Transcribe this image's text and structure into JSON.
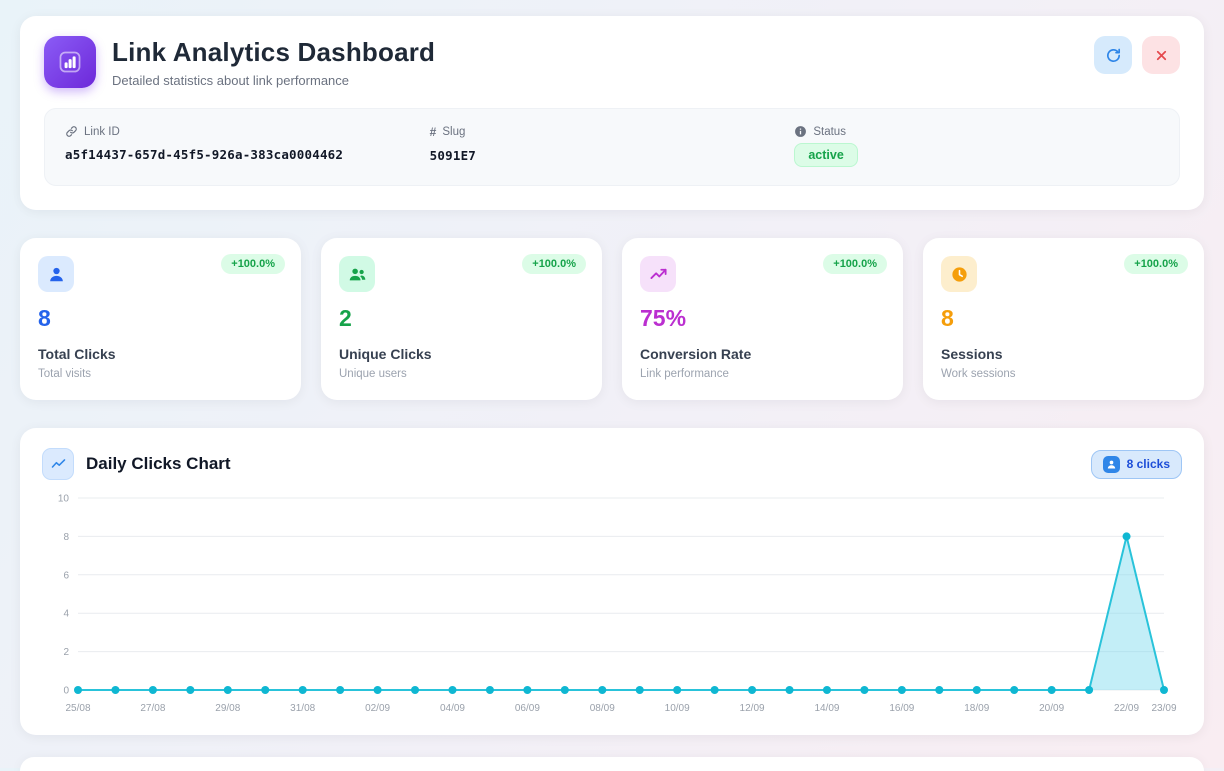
{
  "header": {
    "title": "Link Analytics Dashboard",
    "subtitle": "Detailed statistics about link performance"
  },
  "link_info": {
    "link_id": {
      "label": "Link ID",
      "value": "a5f14437-657d-45f5-926a-383ca0004462"
    },
    "slug": {
      "label": "Slug",
      "value": "5091E7"
    },
    "status": {
      "label": "Status",
      "value": "active",
      "badge_color": "#16a34a",
      "badge_bg": "#dcfce7"
    }
  },
  "badge_style": {
    "color": "#16a34a",
    "bg": "#dcfce7"
  },
  "stats": [
    {
      "value": "8",
      "label": "Total Clicks",
      "sublabel": "Total visits",
      "badge": "+100.0%",
      "accent": "#2563eb",
      "icon": "user-icon",
      "icon_bg": "#dbeafe"
    },
    {
      "value": "2",
      "label": "Unique Clicks",
      "sublabel": "Unique users",
      "badge": "+100.0%",
      "accent": "#16a34a",
      "icon": "users-icon",
      "icon_bg": "#d1fae5"
    },
    {
      "value": "75%",
      "label": "Conversion Rate",
      "sublabel": "Link performance",
      "badge": "+100.0%",
      "accent": "#bb2fd0",
      "icon": "trending-up-icon",
      "icon_bg": "#f6e1fa"
    },
    {
      "value": "8",
      "label": "Sessions",
      "sublabel": "Work sessions",
      "badge": "+100.0%",
      "accent": "#f59e0b",
      "icon": "clock-icon",
      "icon_bg": "#fdeecd"
    }
  ],
  "chart_card": {
    "title": "Daily Clicks Chart",
    "clicks_badge": "8 clicks"
  },
  "chart_data": {
    "type": "line",
    "title": "Daily Clicks Chart",
    "x": [
      "25/08",
      "26/08",
      "27/08",
      "28/08",
      "29/08",
      "30/08",
      "31/08",
      "01/09",
      "02/09",
      "03/09",
      "04/09",
      "05/09",
      "06/09",
      "07/09",
      "08/09",
      "09/09",
      "10/09",
      "11/09",
      "12/09",
      "13/09",
      "14/09",
      "15/09",
      "16/09",
      "17/09",
      "18/09",
      "19/09",
      "20/09",
      "21/09",
      "22/09",
      "23/09"
    ],
    "values": [
      0,
      0,
      0,
      0,
      0,
      0,
      0,
      0,
      0,
      0,
      0,
      0,
      0,
      0,
      0,
      0,
      0,
      0,
      0,
      0,
      0,
      0,
      0,
      0,
      0,
      0,
      0,
      0,
      8,
      0
    ],
    "ylim": [
      0,
      10
    ],
    "yticks": [
      0,
      2,
      4,
      6,
      8,
      10
    ],
    "x_tick_indices": [
      0,
      2,
      4,
      6,
      8,
      10,
      12,
      14,
      16,
      18,
      20,
      22,
      24,
      26,
      28,
      29
    ],
    "grid": true,
    "legend_position": "none",
    "colors": {
      "line": "#29c3da",
      "fill": "rgba(122,218,237,0.45)",
      "dot": "#0fb7d2",
      "grid": "#e9ecef"
    }
  }
}
